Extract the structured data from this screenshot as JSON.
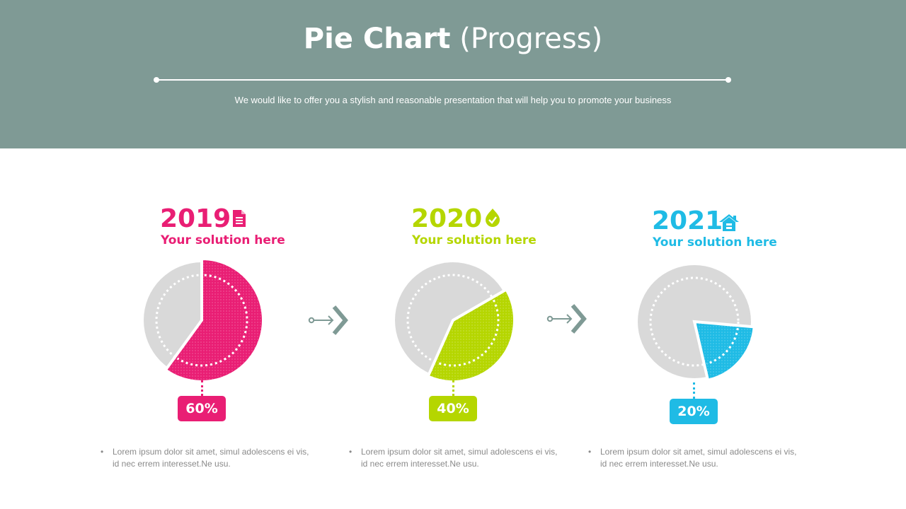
{
  "header": {
    "title_bold": "Pie Chart",
    "title_light": "(Progress)",
    "subtitle": "We would like to offer you a stylish and reasonable presentation that will help you to promote your business"
  },
  "colors": {
    "header_bg": "#7f9a95",
    "pie_gray": "#d9d9d9",
    "arrow": "#7f9a95"
  },
  "chart_data": [
    {
      "type": "pie",
      "year": "2019",
      "subtitle": "Your solution here",
      "icon": "document-icon",
      "value": 60,
      "label": "60%",
      "color": "#e91e74",
      "text": "Lorem ipsum dolor sit amet, simul adolescens ei vis, id nec errem interesset.Ne usu."
    },
    {
      "type": "pie",
      "year": "2020",
      "subtitle": "Your solution here",
      "icon": "leaf-drop-icon",
      "value": 40,
      "label": "40%",
      "color": "#b5d600",
      "text": "Lorem ipsum dolor sit amet, simul adolescens ei vis, id nec errem interesset.Ne usu."
    },
    {
      "type": "pie",
      "year": "2021",
      "subtitle": "Your solution here",
      "icon": "house-icon",
      "value": 20,
      "label": "20%",
      "color": "#1fbbe5",
      "text": "Lorem ipsum dolor sit amet, simul adolescens ei vis, id nec errem interesset.Ne usu."
    }
  ]
}
